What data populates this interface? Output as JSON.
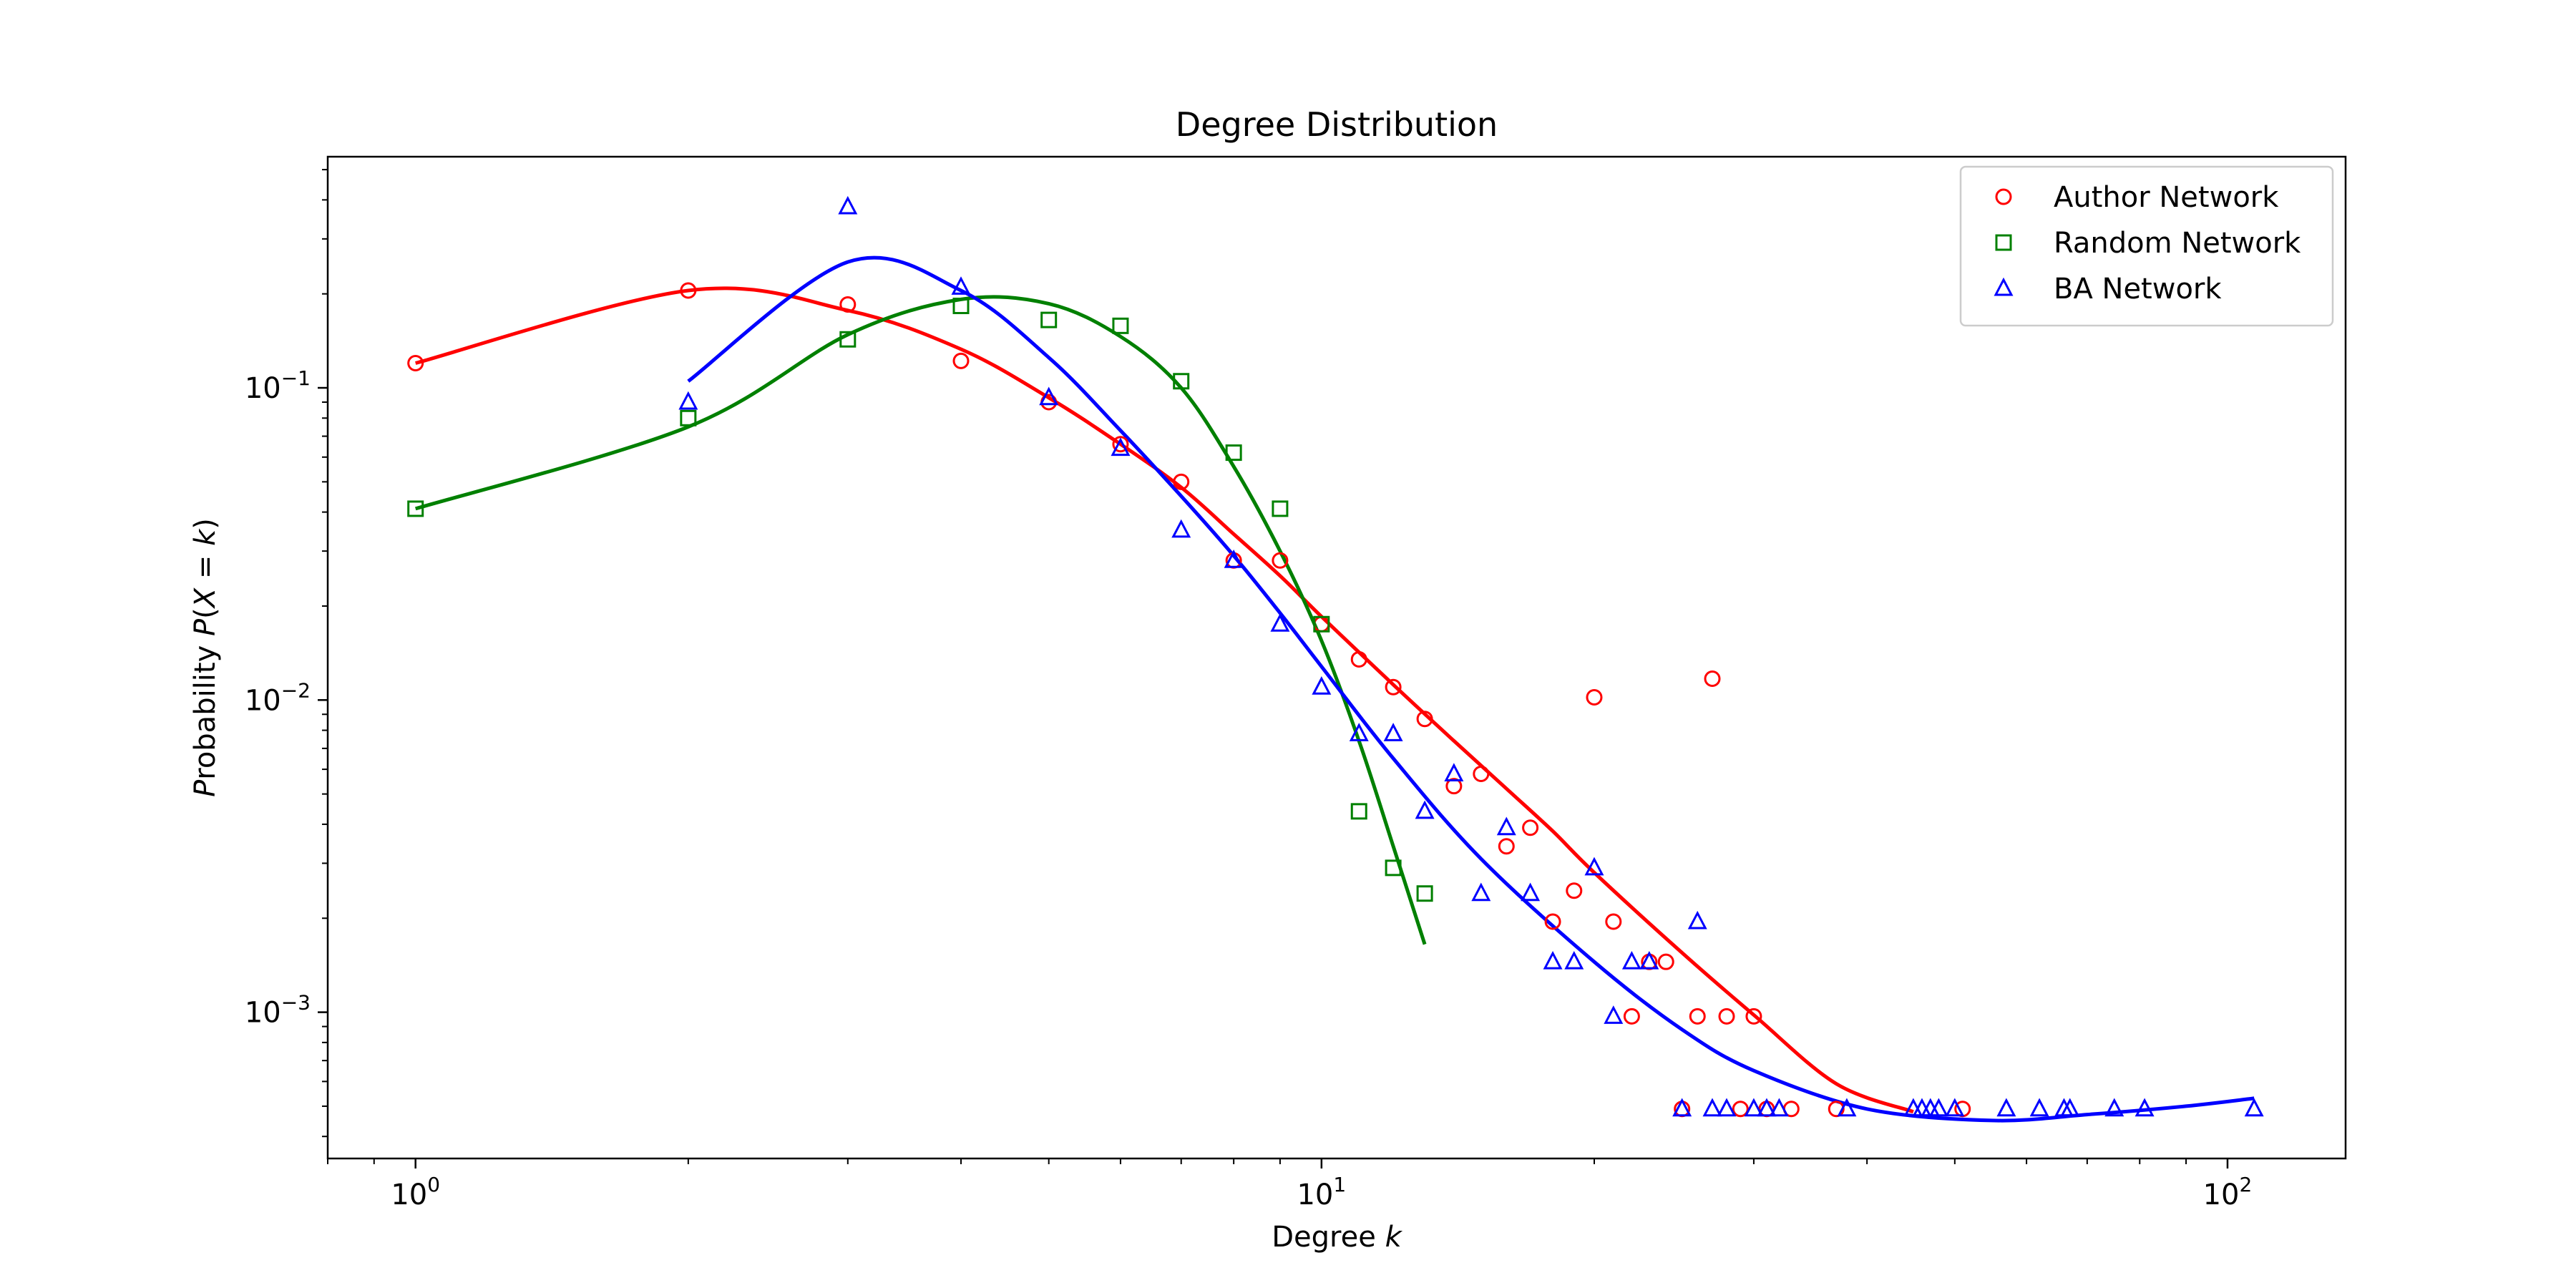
{
  "chart_data": {
    "type": "scatter",
    "title": "Degree Distribution",
    "xlabel": "Degree k",
    "ylabel": "Probability P(X = k)",
    "xscale": "log",
    "yscale": "log",
    "xlim": [
      0.8,
      135
    ],
    "ylim": [
      0.00034,
      0.55
    ],
    "xticks": [
      1,
      10,
      100
    ],
    "xtick_labels": [
      "10^0",
      "10^1",
      "10^2"
    ],
    "yticks": [
      0.001,
      0.01,
      0.1
    ],
    "ytick_labels": [
      "10^-3",
      "10^-2",
      "10^-1"
    ],
    "grid": false,
    "legend_position": "top-right",
    "series": [
      {
        "name": "Author Network",
        "color": "#ff0000",
        "marker": "circle",
        "points": [
          [
            1,
            0.12
          ],
          [
            2,
            0.205
          ],
          [
            3,
            0.185
          ],
          [
            4,
            0.122
          ],
          [
            5,
            0.09
          ],
          [
            6,
            0.066
          ],
          [
            7,
            0.05
          ],
          [
            8,
            0.028
          ],
          [
            9,
            0.028
          ],
          [
            10,
            0.0175
          ],
          [
            11,
            0.0135
          ],
          [
            12,
            0.011
          ],
          [
            13,
            0.0087
          ],
          [
            14,
            0.0053
          ],
          [
            15,
            0.0058
          ],
          [
            16,
            0.0034
          ],
          [
            17,
            0.0039
          ],
          [
            18,
            0.00195
          ],
          [
            19,
            0.00245
          ],
          [
            20,
            0.0102
          ],
          [
            21,
            0.00195
          ],
          [
            22,
            0.00097
          ],
          [
            23,
            0.00145
          ],
          [
            24,
            0.00145
          ],
          [
            25,
            0.00049
          ],
          [
            26,
            0.00097
          ],
          [
            27,
            0.0117
          ],
          [
            28,
            0.00097
          ],
          [
            29,
            0.00049
          ],
          [
            30,
            0.00097
          ],
          [
            31,
            0.00049
          ],
          [
            33,
            0.00049
          ],
          [
            37,
            0.00049
          ],
          [
            51,
            0.00049
          ]
        ],
        "fit": [
          [
            1,
            0.12
          ],
          [
            2,
            0.205
          ],
          [
            3,
            0.177
          ],
          [
            4,
            0.133
          ],
          [
            5,
            0.093
          ],
          [
            6,
            0.066
          ],
          [
            7,
            0.048
          ],
          [
            8,
            0.034
          ],
          [
            9,
            0.025
          ],
          [
            10,
            0.0185
          ],
          [
            12,
            0.0112
          ],
          [
            14,
            0.0074
          ],
          [
            16,
            0.0052
          ],
          [
            18,
            0.0038
          ],
          [
            20,
            0.0028
          ],
          [
            25,
            0.00155
          ],
          [
            30,
            0.00098
          ],
          [
            37,
            0.00059
          ],
          [
            45,
            0.00048
          ]
        ]
      },
      {
        "name": "Random Network",
        "color": "#008000",
        "marker": "square",
        "points": [
          [
            1,
            0.041
          ],
          [
            2,
            0.08
          ],
          [
            3,
            0.143
          ],
          [
            4,
            0.183
          ],
          [
            5,
            0.165
          ],
          [
            6,
            0.158
          ],
          [
            7,
            0.105
          ],
          [
            8,
            0.062
          ],
          [
            9,
            0.041
          ],
          [
            10,
            0.0175
          ],
          [
            11,
            0.0044
          ],
          [
            12,
            0.0029
          ],
          [
            13,
            0.0024
          ]
        ],
        "fit": [
          [
            1,
            0.041
          ],
          [
            2,
            0.075
          ],
          [
            3,
            0.148
          ],
          [
            4,
            0.192
          ],
          [
            5,
            0.186
          ],
          [
            6,
            0.146
          ],
          [
            7,
            0.1
          ],
          [
            8,
            0.056
          ],
          [
            9,
            0.03
          ],
          [
            10,
            0.0155
          ],
          [
            11,
            0.0074
          ],
          [
            12,
            0.0034
          ],
          [
            13,
            0.00165
          ]
        ]
      },
      {
        "name": "BA Network",
        "color": "#0000ff",
        "marker": "triangle",
        "points": [
          [
            2,
            0.09
          ],
          [
            3,
            0.38
          ],
          [
            4,
            0.21
          ],
          [
            5,
            0.093
          ],
          [
            6,
            0.064
          ],
          [
            7,
            0.035
          ],
          [
            8,
            0.028
          ],
          [
            9,
            0.0175
          ],
          [
            10,
            0.011
          ],
          [
            11,
            0.0078
          ],
          [
            12,
            0.0078
          ],
          [
            13,
            0.0044
          ],
          [
            14,
            0.0058
          ],
          [
            15,
            0.0024
          ],
          [
            16,
            0.0039
          ],
          [
            17,
            0.0024
          ],
          [
            18,
            0.00145
          ],
          [
            19,
            0.00145
          ],
          [
            20,
            0.0029
          ],
          [
            21,
            0.00097
          ],
          [
            22,
            0.00145
          ],
          [
            23,
            0.00145
          ],
          [
            25,
            0.00049
          ],
          [
            26,
            0.00195
          ],
          [
            27,
            0.00049
          ],
          [
            28,
            0.00049
          ],
          [
            30,
            0.00049
          ],
          [
            31,
            0.00049
          ],
          [
            32,
            0.00049
          ],
          [
            38,
            0.00049
          ],
          [
            45,
            0.00049
          ],
          [
            46,
            0.00049
          ],
          [
            47,
            0.00049
          ],
          [
            48,
            0.00049
          ],
          [
            50,
            0.00049
          ],
          [
            57,
            0.00049
          ],
          [
            62,
            0.00049
          ],
          [
            66,
            0.00049
          ],
          [
            67,
            0.00049
          ],
          [
            75,
            0.00049
          ],
          [
            81,
            0.00049
          ],
          [
            107,
            0.00049
          ]
        ],
        "fit": [
          [
            2,
            0.105
          ],
          [
            3,
            0.253
          ],
          [
            4,
            0.205
          ],
          [
            5,
            0.125
          ],
          [
            6,
            0.073
          ],
          [
            7,
            0.045
          ],
          [
            8,
            0.029
          ],
          [
            9,
            0.019
          ],
          [
            10,
            0.0128
          ],
          [
            12,
            0.0065
          ],
          [
            15,
            0.0031
          ],
          [
            20,
            0.00145
          ],
          [
            25,
            0.00088
          ],
          [
            30,
            0.00065
          ],
          [
            40,
            0.00049
          ],
          [
            55,
            0.00045
          ],
          [
            70,
            0.00047
          ],
          [
            90,
            0.0005
          ],
          [
            107,
            0.00053
          ]
        ]
      }
    ]
  }
}
